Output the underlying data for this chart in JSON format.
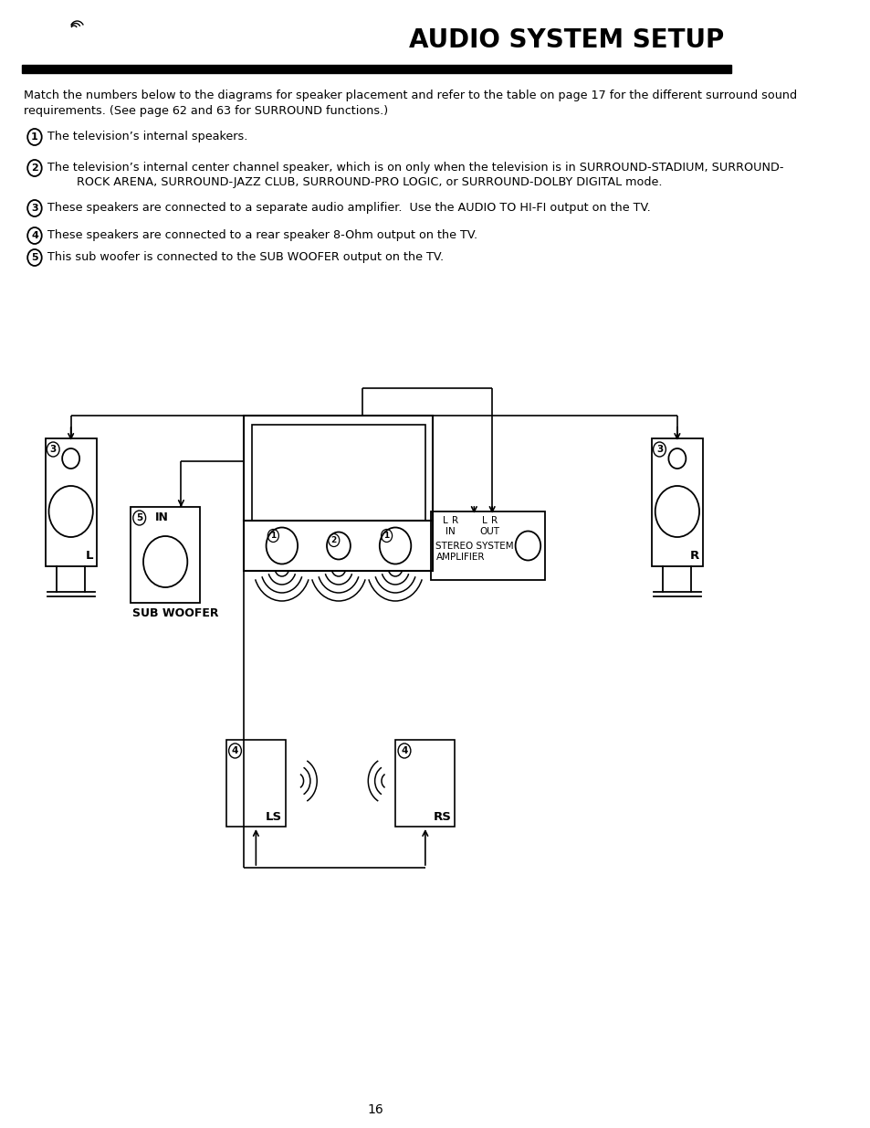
{
  "title": "AUDIO SYSTEM SETUP",
  "page_number": "16",
  "bg_color": "#ffffff",
  "text_color": "#000000",
  "intro_text": "Match the numbers below to the diagrams for speaker placement and refer to the table on page 17 for the different surround sound\nrequirements. (See page 62 and 63 for SURROUND functions.)",
  "items": [
    {
      "num": "1",
      "text": "The television’s internal speakers."
    },
    {
      "num": "2",
      "text": "The television’s internal center channel speaker, which is on only when the television is in SURROUND-STADIUM, SURROUND-\n        ROCK ARENA, SURROUND-JAZZ CLUB, SURROUND-PRO LOGIC, or SURROUND-DOLBY DIGITAL mode."
    },
    {
      "num": "3",
      "text": "These speakers are connected to a separate audio amplifier.  Use the AUDIO TO HI-FI output on the TV."
    },
    {
      "num": "4",
      "text": "These speakers are connected to a rear speaker 8-Ohm output on the TV."
    },
    {
      "num": "5",
      "text": "This sub woofer is connected to the SUB WOOFER output on the TV."
    }
  ]
}
